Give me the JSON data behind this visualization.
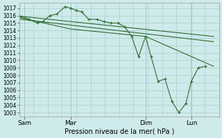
{
  "xlabel": "Pression niveau de la mer( hPa )",
  "ylim": [
    1002.5,
    1017.7
  ],
  "yticks": [
    1003,
    1004,
    1005,
    1006,
    1007,
    1008,
    1009,
    1010,
    1011,
    1012,
    1013,
    1014,
    1015,
    1016,
    1017
  ],
  "bg_color": "#ceeaea",
  "line_color": "#2d6a2d",
  "grid_color": "#aacece",
  "xtick_labels": [
    "Sam",
    "Mar",
    "Dim",
    "Lun"
  ],
  "xtick_positions": [
    0.18,
    1.85,
    4.55,
    6.2
  ],
  "xlim": [
    0.0,
    7.2
  ],
  "main_x": [
    0.05,
    0.35,
    0.65,
    0.85,
    1.1,
    1.35,
    1.65,
    1.85,
    2.05,
    2.25,
    2.5,
    2.8,
    3.05,
    3.3,
    3.55,
    3.8,
    4.05,
    4.3,
    4.55,
    4.75,
    5.0,
    5.25,
    5.5,
    5.75,
    6.0,
    6.2,
    6.45,
    6.7
  ],
  "main_y": [
    1015.9,
    1015.5,
    1015.0,
    1015.2,
    1016.0,
    1016.2,
    1017.2,
    1017.0,
    1016.7,
    1016.5,
    1015.5,
    1015.5,
    1015.2,
    1015.0,
    1015.0,
    1014.5,
    1013.2,
    1010.5,
    1013.2,
    1010.5,
    1007.2,
    1007.5,
    1004.5,
    1003.0,
    1004.2,
    1007.2,
    1009.0,
    1009.2
  ],
  "trend1_x": [
    0.05,
    7.0
  ],
  "trend1_y": [
    1015.9,
    1013.2
  ],
  "trend2_x": [
    0.05,
    7.0
  ],
  "trend2_y": [
    1015.5,
    1012.5
  ],
  "trend3_x": [
    0.05,
    1.85,
    4.55,
    7.0
  ],
  "trend3_y": [
    1015.7,
    1014.2,
    1013.2,
    1009.2
  ]
}
